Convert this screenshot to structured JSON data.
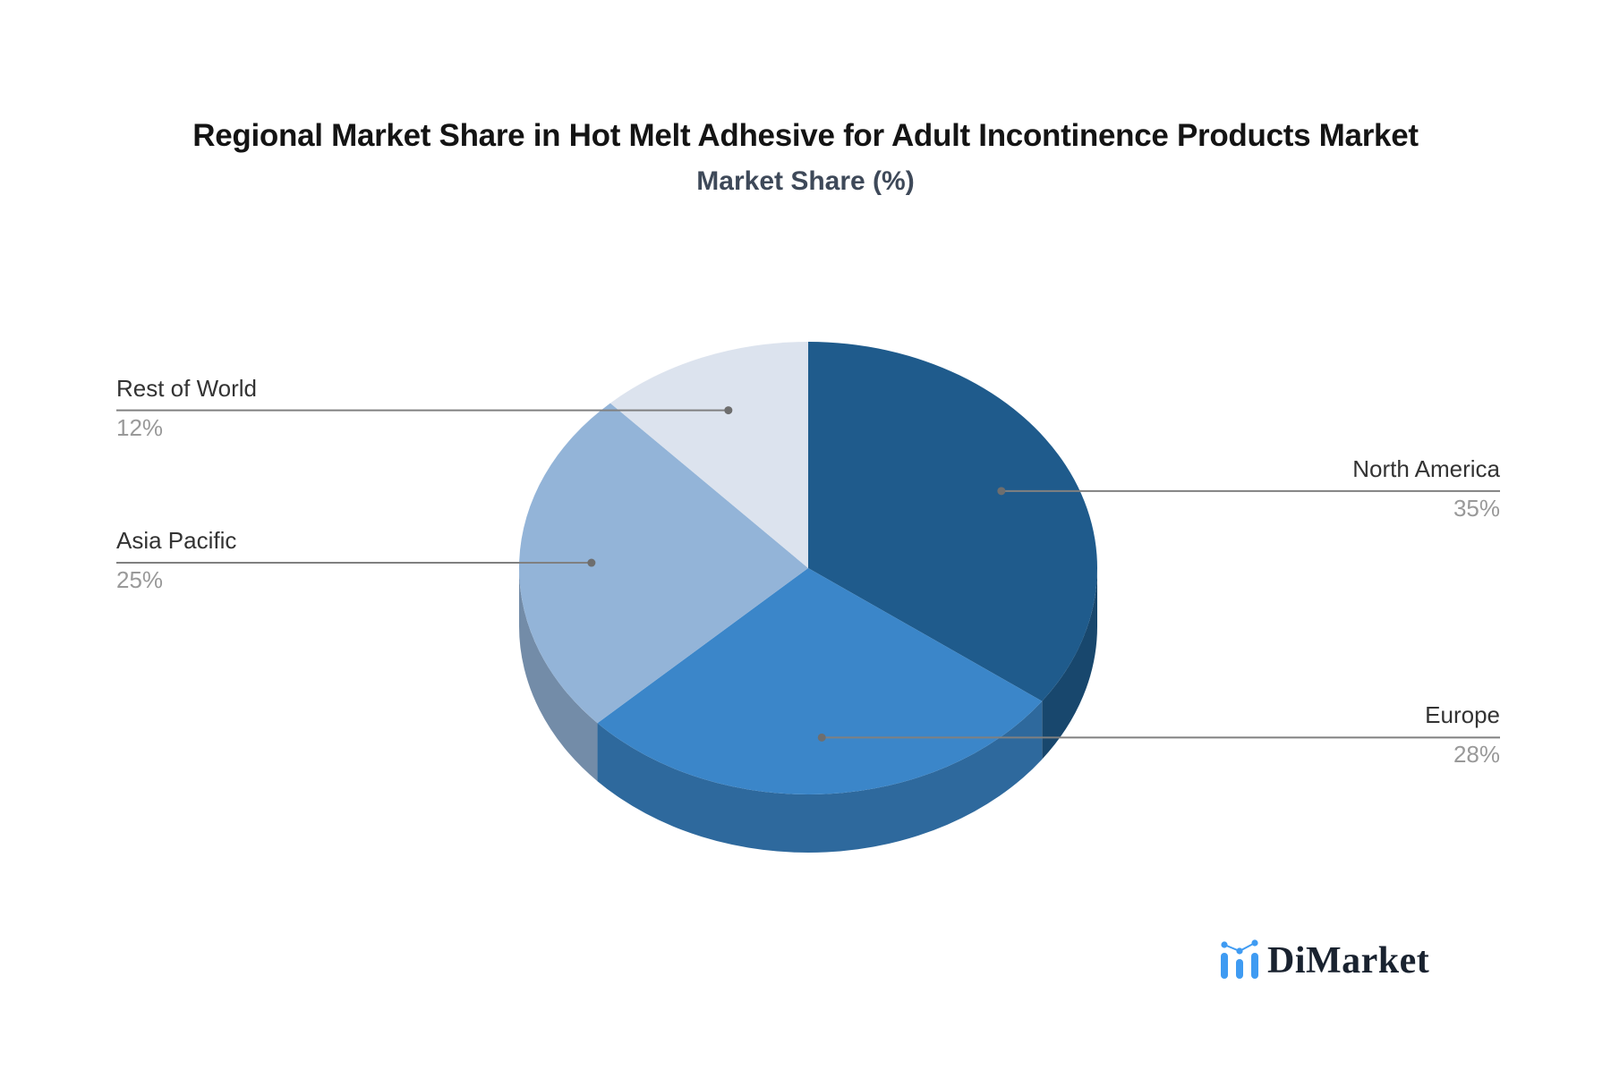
{
  "header": {
    "title": "Regional Market Share in Hot Melt Adhesive for Adult Incontinence Products Market",
    "subtitle": "Market Share (%)",
    "title_color": "#141414",
    "subtitle_color": "#3E4959"
  },
  "chart_data": {
    "type": "pie",
    "style": "3d",
    "unit": "%",
    "direction": "clockwise",
    "start_angle": "12-o-clock",
    "title": "Regional Market Share in Hot Melt Adhesive for Adult Incontinence Products Market",
    "subtitle": "Market Share (%)",
    "slices": [
      {
        "label": "North America",
        "value": 35,
        "display": "35%",
        "color": "#1F5B8C"
      },
      {
        "label": "Europe",
        "value": 28,
        "display": "28%",
        "color": "#3B86C9"
      },
      {
        "label": "Asia Pacific",
        "value": 25,
        "display": "25%",
        "color": "#93B4D8"
      },
      {
        "label": "Rest of World",
        "value": 12,
        "display": "12%",
        "color": "#DCE3EE"
      }
    ],
    "legend_position": "callout-labels",
    "leader_line_color": "#808080",
    "leader_dot_color": "#6E6E6E",
    "label_color": "#333333",
    "percent_color": "#999999"
  },
  "logo": {
    "text": "DiMarket",
    "text_color": "#19222F",
    "icon": "bar-chart-with-trend-dots",
    "icon_color": "#3F9BF2"
  }
}
